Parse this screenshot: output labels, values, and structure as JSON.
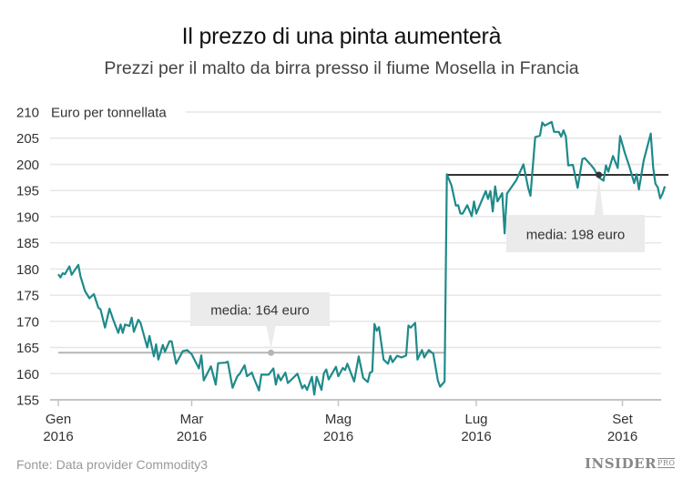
{
  "chart_data": {
    "type": "line",
    "title": "Il prezzo di una pinta aumenterà",
    "subtitle": "Prezzi per il malto da birra presso il fiume Mosella in Francia",
    "ylabel": "Euro per tonnellata",
    "xlabel": "",
    "ylim": [
      155,
      210
    ],
    "yticks": [
      155,
      160,
      165,
      170,
      175,
      180,
      185,
      190,
      195,
      200,
      205,
      210
    ],
    "xticks": [
      {
        "date": "2016-01-01",
        "month": "Gen",
        "year": "2016"
      },
      {
        "date": "2016-03-01",
        "month": "Mar",
        "year": "2016"
      },
      {
        "date": "2016-05-01",
        "month": "Mag",
        "year": "2016"
      },
      {
        "date": "2016-07-01",
        "month": "Lug",
        "year": "2016"
      },
      {
        "date": "2016-09-01",
        "month": "Set",
        "year": "2016"
      }
    ],
    "grid": true,
    "line_color": "#1f8a8a",
    "points": [
      [
        "2016-01-01",
        179.0
      ],
      [
        "2016-01-02",
        178.4
      ],
      [
        "2016-01-03",
        179.2
      ],
      [
        "2016-01-04",
        179.0
      ],
      [
        "2016-01-06",
        180.5
      ],
      [
        "2016-01-07",
        178.9
      ],
      [
        "2016-01-10",
        180.8
      ],
      [
        "2016-01-11",
        178.6
      ],
      [
        "2016-01-13",
        175.8
      ],
      [
        "2016-01-15",
        174.4
      ],
      [
        "2016-01-17",
        175.2
      ],
      [
        "2016-01-19",
        172.6
      ],
      [
        "2016-01-20",
        172.3
      ],
      [
        "2016-01-22",
        168.8
      ],
      [
        "2016-01-24",
        172.4
      ],
      [
        "2016-01-26",
        170.0
      ],
      [
        "2016-01-28",
        167.8
      ],
      [
        "2016-01-29",
        169.4
      ],
      [
        "2016-01-30",
        167.8
      ],
      [
        "2016-01-31",
        169.4
      ],
      [
        "2016-02-02",
        169.1
      ],
      [
        "2016-02-03",
        170.7
      ],
      [
        "2016-02-04",
        168.0
      ],
      [
        "2016-02-06",
        170.3
      ],
      [
        "2016-02-07",
        169.7
      ],
      [
        "2016-02-10",
        165.0
      ],
      [
        "2016-02-11",
        167.2
      ],
      [
        "2016-02-13",
        163.3
      ],
      [
        "2016-02-14",
        165.6
      ],
      [
        "2016-02-15",
        162.7
      ],
      [
        "2016-02-17",
        165.5
      ],
      [
        "2016-02-18",
        164.2
      ],
      [
        "2016-02-20",
        166.2
      ],
      [
        "2016-02-21",
        166.2
      ],
      [
        "2016-02-23",
        161.9
      ],
      [
        "2016-02-26",
        164.3
      ],
      [
        "2016-02-28",
        164.5
      ],
      [
        "2016-03-01",
        163.7
      ],
      [
        "2016-03-04",
        161.0
      ],
      [
        "2016-03-05",
        163.5
      ],
      [
        "2016-03-06",
        158.7
      ],
      [
        "2016-03-09",
        161.4
      ],
      [
        "2016-03-11",
        157.9
      ],
      [
        "2016-03-12",
        162.0
      ],
      [
        "2016-03-15",
        162.1
      ],
      [
        "2016-03-16",
        162.3
      ],
      [
        "2016-03-18",
        157.3
      ],
      [
        "2016-03-20",
        159.5
      ],
      [
        "2016-03-21",
        160.0
      ],
      [
        "2016-03-23",
        161.6
      ],
      [
        "2016-03-24",
        159.5
      ],
      [
        "2016-03-26",
        160.2
      ],
      [
        "2016-03-27",
        159.0
      ],
      [
        "2016-03-29",
        156.8
      ],
      [
        "2016-03-30",
        159.8
      ],
      [
        "2016-04-02",
        159.8
      ],
      [
        "2016-04-04",
        161.0
      ],
      [
        "2016-04-05",
        157.9
      ],
      [
        "2016-04-06",
        159.8
      ],
      [
        "2016-04-07",
        158.7
      ],
      [
        "2016-04-09",
        160.2
      ],
      [
        "2016-04-10",
        158.2
      ],
      [
        "2016-04-14",
        160.0
      ],
      [
        "2016-04-16",
        157.2
      ],
      [
        "2016-04-17",
        157.8
      ],
      [
        "2016-04-18",
        156.9
      ],
      [
        "2016-04-20",
        159.4
      ],
      [
        "2016-04-21",
        156.0
      ],
      [
        "2016-04-22",
        159.4
      ],
      [
        "2016-04-24",
        156.9
      ],
      [
        "2016-04-25",
        160.1
      ],
      [
        "2016-04-26",
        160.8
      ],
      [
        "2016-04-27",
        158.9
      ],
      [
        "2016-04-30",
        161.3
      ],
      [
        "2016-05-01",
        159.5
      ],
      [
        "2016-05-03",
        161.1
      ],
      [
        "2016-05-04",
        160.7
      ],
      [
        "2016-05-05",
        161.9
      ],
      [
        "2016-05-08",
        158.5
      ],
      [
        "2016-05-10",
        163.3
      ],
      [
        "2016-05-12",
        159.2
      ],
      [
        "2016-05-14",
        158.4
      ],
      [
        "2016-05-15",
        160.2
      ],
      [
        "2016-05-16",
        160.4
      ],
      [
        "2016-05-17",
        169.5
      ],
      [
        "2016-05-18",
        168.2
      ],
      [
        "2016-05-19",
        168.9
      ],
      [
        "2016-05-21",
        162.7
      ],
      [
        "2016-05-23",
        161.9
      ],
      [
        "2016-05-24",
        163.4
      ],
      [
        "2016-05-25",
        162.2
      ],
      [
        "2016-05-27",
        163.4
      ],
      [
        "2016-05-29",
        163.1
      ],
      [
        "2016-05-31",
        163.5
      ],
      [
        "2016-06-01",
        169.2
      ],
      [
        "2016-06-02",
        168.8
      ],
      [
        "2016-06-04",
        169.7
      ],
      [
        "2016-06-05",
        162.7
      ],
      [
        "2016-06-07",
        164.5
      ],
      [
        "2016-06-08",
        163.1
      ],
      [
        "2016-06-10",
        164.5
      ],
      [
        "2016-06-12",
        163.8
      ],
      [
        "2016-06-14",
        158.7
      ],
      [
        "2016-06-15",
        157.5
      ],
      [
        "2016-06-17",
        158.5
      ],
      [
        "2016-06-18",
        198.1
      ],
      [
        "2016-06-20",
        196.0
      ],
      [
        "2016-06-22",
        192.1
      ],
      [
        "2016-06-23",
        192.2
      ],
      [
        "2016-06-24",
        190.6
      ],
      [
        "2016-06-25",
        190.6
      ],
      [
        "2016-06-27",
        192.2
      ],
      [
        "2016-06-29",
        190.1
      ],
      [
        "2016-06-30",
        192.9
      ],
      [
        "2016-07-01",
        190.6
      ],
      [
        "2016-07-05",
        194.9
      ],
      [
        "2016-07-06",
        193.4
      ],
      [
        "2016-07-07",
        194.9
      ],
      [
        "2016-07-08",
        191.0
      ],
      [
        "2016-07-09",
        195.8
      ],
      [
        "2016-07-10",
        192.9
      ],
      [
        "2016-07-12",
        194.5
      ],
      [
        "2016-07-13",
        186.8
      ],
      [
        "2016-07-14",
        194.4
      ],
      [
        "2016-07-18",
        197.0
      ],
      [
        "2016-07-21",
        200.0
      ],
      [
        "2016-07-23",
        195.5
      ],
      [
        "2016-07-24",
        194.0
      ],
      [
        "2016-07-26",
        205.2
      ],
      [
        "2016-07-28",
        205.5
      ],
      [
        "2016-07-29",
        208.0
      ],
      [
        "2016-07-30",
        207.4
      ],
      [
        "2016-08-02",
        208.1
      ],
      [
        "2016-08-03",
        206.2
      ],
      [
        "2016-08-05",
        206.2
      ],
      [
        "2016-08-06",
        205.3
      ],
      [
        "2016-08-07",
        206.5
      ],
      [
        "2016-08-08",
        205.3
      ],
      [
        "2016-08-09",
        199.8
      ],
      [
        "2016-08-11",
        199.9
      ],
      [
        "2016-08-13",
        195.5
      ],
      [
        "2016-08-15",
        201.0
      ],
      [
        "2016-08-16",
        201.2
      ],
      [
        "2016-08-19",
        199.7
      ],
      [
        "2016-08-20",
        199.1
      ],
      [
        "2016-08-22",
        197.5
      ],
      [
        "2016-08-24",
        196.9
      ],
      [
        "2016-08-25",
        199.8
      ],
      [
        "2016-08-26",
        198.6
      ],
      [
        "2016-08-28",
        201.6
      ],
      [
        "2016-08-30",
        199.3
      ],
      [
        "2016-08-31",
        205.4
      ],
      [
        "2016-09-02",
        202.2
      ],
      [
        "2016-09-04",
        199.5
      ],
      [
        "2016-09-06",
        196.4
      ],
      [
        "2016-09-07",
        198.1
      ],
      [
        "2016-09-08",
        195.2
      ],
      [
        "2016-09-10",
        200.7
      ],
      [
        "2016-09-13",
        205.9
      ],
      [
        "2016-09-14",
        199.5
      ],
      [
        "2016-09-15",
        196.3
      ],
      [
        "2016-09-16",
        195.6
      ],
      [
        "2016-09-17",
        193.5
      ],
      [
        "2016-09-18",
        194.4
      ],
      [
        "2016-09-19",
        195.8
      ]
    ],
    "annotations": [
      {
        "label": "media: 164 euro",
        "value": 164,
        "from": "2016-01-01",
        "to": "2016-06-17",
        "marker": "2016-04-03",
        "color": "#b5b5b5"
      },
      {
        "label": "media: 198 euro",
        "value": 198,
        "from": "2016-06-18",
        "to": "2016-09-19",
        "marker": "2016-08-22",
        "color": "#333333"
      }
    ]
  },
  "source": "Fonte: Data provider Commodity3",
  "logo": "INSIDER PRO"
}
